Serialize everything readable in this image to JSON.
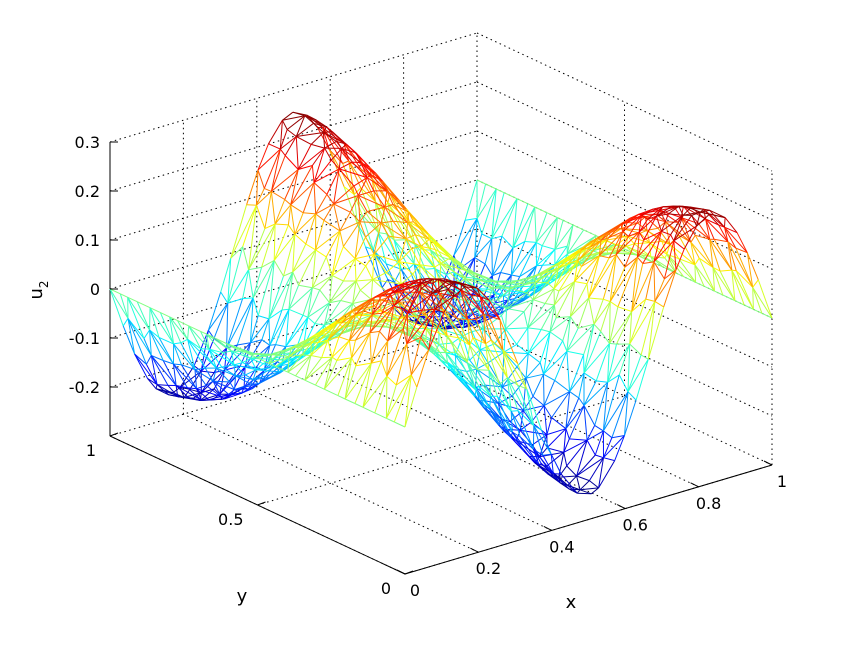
{
  "chart_data": {
    "type": "surface-mesh",
    "xlabel": "x",
    "ylabel": "y",
    "zlabel": "u",
    "zlabel_subscript": "2",
    "xlim": [
      0,
      1
    ],
    "ylim": [
      0,
      1
    ],
    "zlim": [
      -0.3,
      0.3
    ],
    "x_ticks": [
      0,
      0.2,
      0.4,
      0.6,
      0.8,
      1
    ],
    "x_tick_labels": [
      "0",
      "0.2",
      "0.4",
      "0.6",
      "0.8",
      "1"
    ],
    "y_ticks": [
      0,
      0.5,
      1
    ],
    "y_tick_labels": [
      "0",
      "0.5",
      "1"
    ],
    "z_ticks": [
      -0.2,
      -0.1,
      0,
      0.1,
      0.2,
      0.3
    ],
    "z_tick_labels": [
      "-0.2",
      "-0.1",
      "0",
      "0.1",
      "0.2",
      "0.3"
    ],
    "grid": true,
    "colormap": "jet",
    "surface": "u2 = 0.25 * sin(3*pi*x) * cos(pi*y) on triangulated unit square",
    "amplitude": 0.25,
    "x_frequency": 3,
    "y_frequency": 1
  }
}
